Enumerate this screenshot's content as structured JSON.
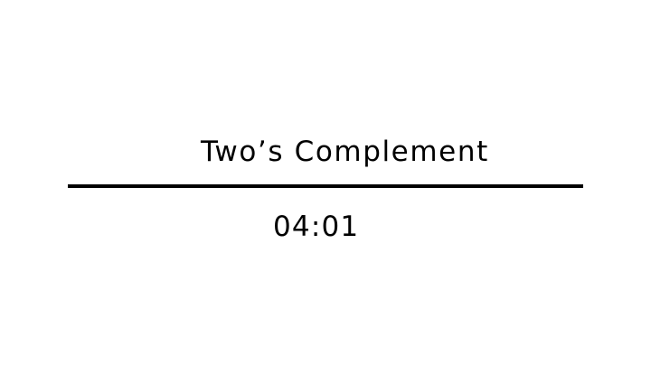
{
  "slide": {
    "title": "Two’s Complement",
    "time": "04:01"
  },
  "colors": {
    "background": "#ffffff",
    "text": "#000000",
    "divider": "#000000"
  }
}
